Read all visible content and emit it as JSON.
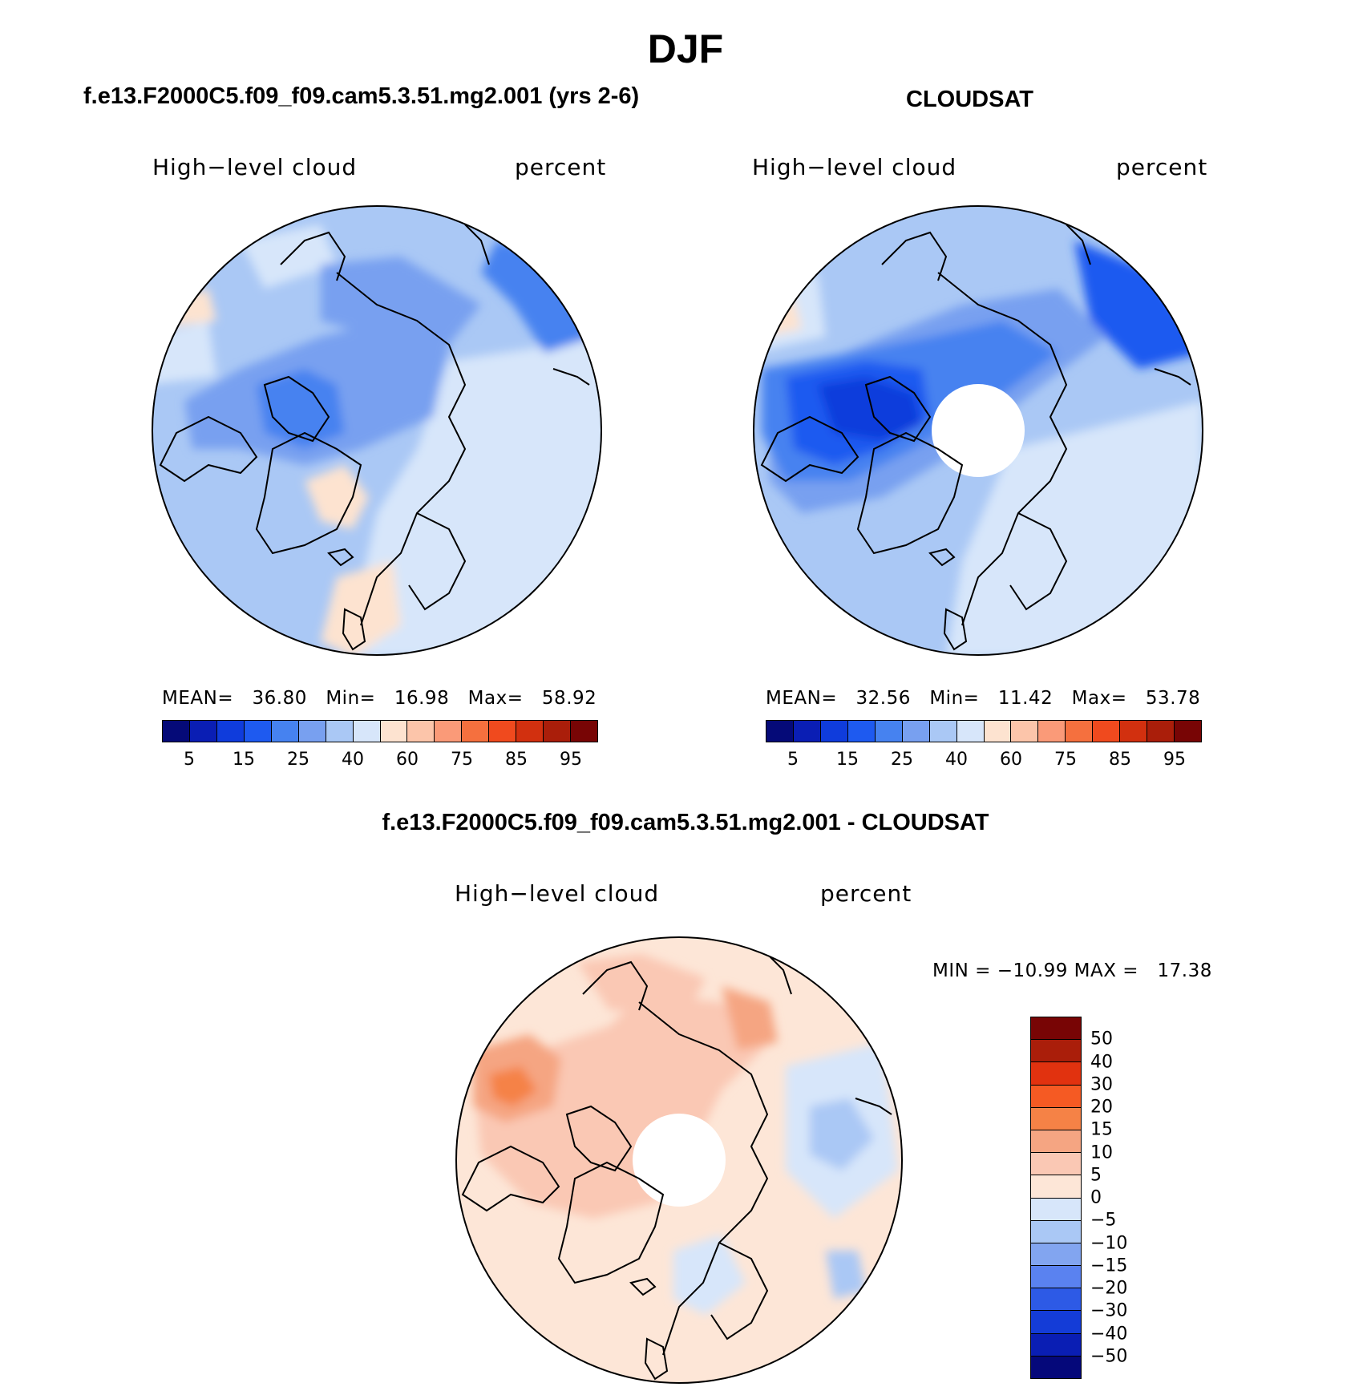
{
  "title": "DJF",
  "panels": [
    {
      "case": "f.e13.F2000C5.f09_f09.cam5.3.51.mg2.001 (yrs 2-6)",
      "variable": "High−level cloud",
      "units": "percent",
      "mean_label": "MEAN=",
      "mean": "36.80",
      "min_label": "Min=",
      "min": "16.98",
      "max_label": "Max=",
      "max": "58.92",
      "colors": [
        "#050a78",
        "#0a1eb4",
        "#0f3cdc",
        "#1e5af0",
        "#4682f0",
        "#78a0f0",
        "#aac8f5",
        "#d7e6fa",
        "#fde3d0",
        "#fcc5aa",
        "#fa9a78",
        "#f5703e",
        "#f04a1e",
        "#d2300f",
        "#aa1e0a",
        "#780505"
      ],
      "ticks": [
        "5",
        "15",
        "25",
        "40",
        "60",
        "75",
        "85",
        "95"
      ]
    },
    {
      "case": "CLOUDSAT",
      "variable": "High−level cloud",
      "units": "percent",
      "mean_label": "MEAN=",
      "mean": "32.56",
      "min_label": "Min=",
      "min": "11.42",
      "max_label": "Max=",
      "max": "53.78",
      "colors": [
        "#050a78",
        "#0a1eb4",
        "#0f3cdc",
        "#1e5af0",
        "#4682f0",
        "#78a0f0",
        "#aac8f5",
        "#d7e6fa",
        "#fde3d0",
        "#fcc5aa",
        "#fa9a78",
        "#f5703e",
        "#f04a1e",
        "#d2300f",
        "#aa1e0a",
        "#780505"
      ],
      "ticks": [
        "5",
        "15",
        "25",
        "40",
        "60",
        "75",
        "85",
        "95"
      ]
    }
  ],
  "difference": {
    "title": "f.e13.F2000C5.f09_f09.cam5.3.51.mg2.001 - CLOUDSAT",
    "variable": "High−level cloud",
    "units": "percent",
    "minmax": "MIN = −10.99 MAX =   17.38",
    "colors": [
      "#780505",
      "#aa1e0a",
      "#e1320f",
      "#f55a23",
      "#f58246",
      "#f5a582",
      "#fac8b4",
      "#fde6d7",
      "#d7e6fa",
      "#aac8f5",
      "#82a5f0",
      "#5a82f0",
      "#2d5ae6",
      "#143cd7",
      "#0a1eb4",
      "#05087a"
    ],
    "ticks": [
      "50",
      "40",
      "30",
      "20",
      "15",
      "10",
      "5",
      "0",
      "−5",
      "−10",
      "−15",
      "−20",
      "−30",
      "−40",
      "−50"
    ]
  },
  "map_colors": {
    "model_base": "#aac8f5",
    "model_light": "#d7e6fa",
    "model_mid": "#78a0f0",
    "model_dark": "#4682f0",
    "model_warm": "#fde3d0",
    "obs_base": "#aac8f5",
    "obs_light": "#d7e6fa",
    "obs_mid": "#78a0f0",
    "obs_dark": "#4682f0",
    "obs_darker": "#1e5af0",
    "obs_darkest": "#0f3cdc",
    "diff_base": "#fde6d7",
    "diff_mid": "#fac8b4",
    "diff_strong": "#f5a582",
    "diff_hot": "#f58246",
    "diff_cool": "#d7e6fa",
    "diff_cooler": "#aac8f5",
    "coast": "#000000"
  }
}
